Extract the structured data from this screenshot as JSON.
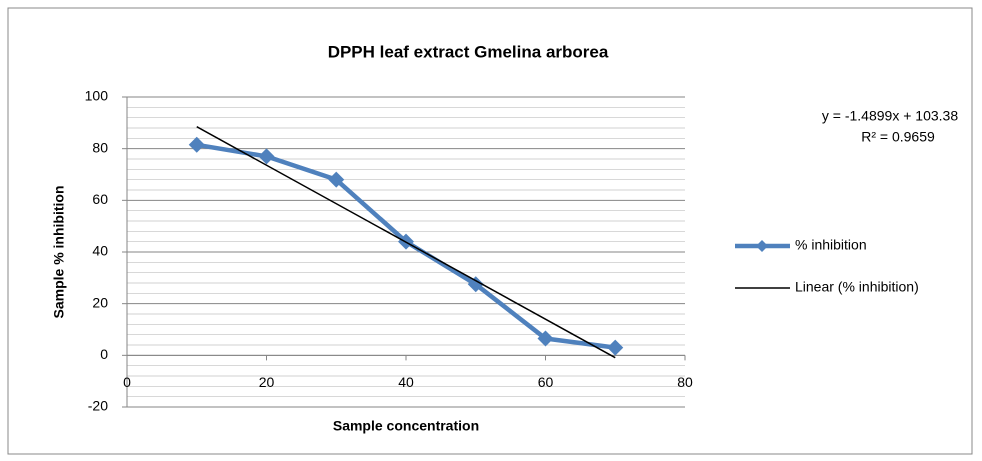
{
  "chart_data": {
    "type": "scatter",
    "title": "DPPH leaf extract Gmelina arborea",
    "x_label": "Sample concentration",
    "y_label": "Sample % inhibition",
    "series": [
      {
        "name": "% inhibition",
        "color": "#4f81bd",
        "x": [
          10,
          20,
          30,
          40,
          50,
          60,
          70
        ],
        "values": [
          81.5,
          77,
          68,
          44,
          27.5,
          6.5,
          3
        ]
      },
      {
        "name": "Linear (% inhibition)",
        "color": "#000000",
        "x": [
          10,
          70
        ],
        "values": [
          88.5,
          -0.9
        ]
      }
    ],
    "annotations": [
      "y = -1.4899x + 103.38",
      "R² = 0.9659"
    ],
    "xlim": [
      0,
      80
    ],
    "xticks": [
      0,
      20,
      40,
      60,
      80
    ],
    "ylim": [
      -20,
      100
    ],
    "yticks": [
      -20,
      0,
      20,
      40,
      60,
      80,
      100
    ],
    "y_minor_ticks": [
      -16,
      -12,
      -8,
      -4,
      4,
      8,
      12,
      16,
      24,
      28,
      32,
      36,
      44,
      48,
      52,
      56,
      64,
      68,
      72,
      76,
      84,
      88,
      92,
      96
    ],
    "grid": true,
    "legend": "right"
  }
}
